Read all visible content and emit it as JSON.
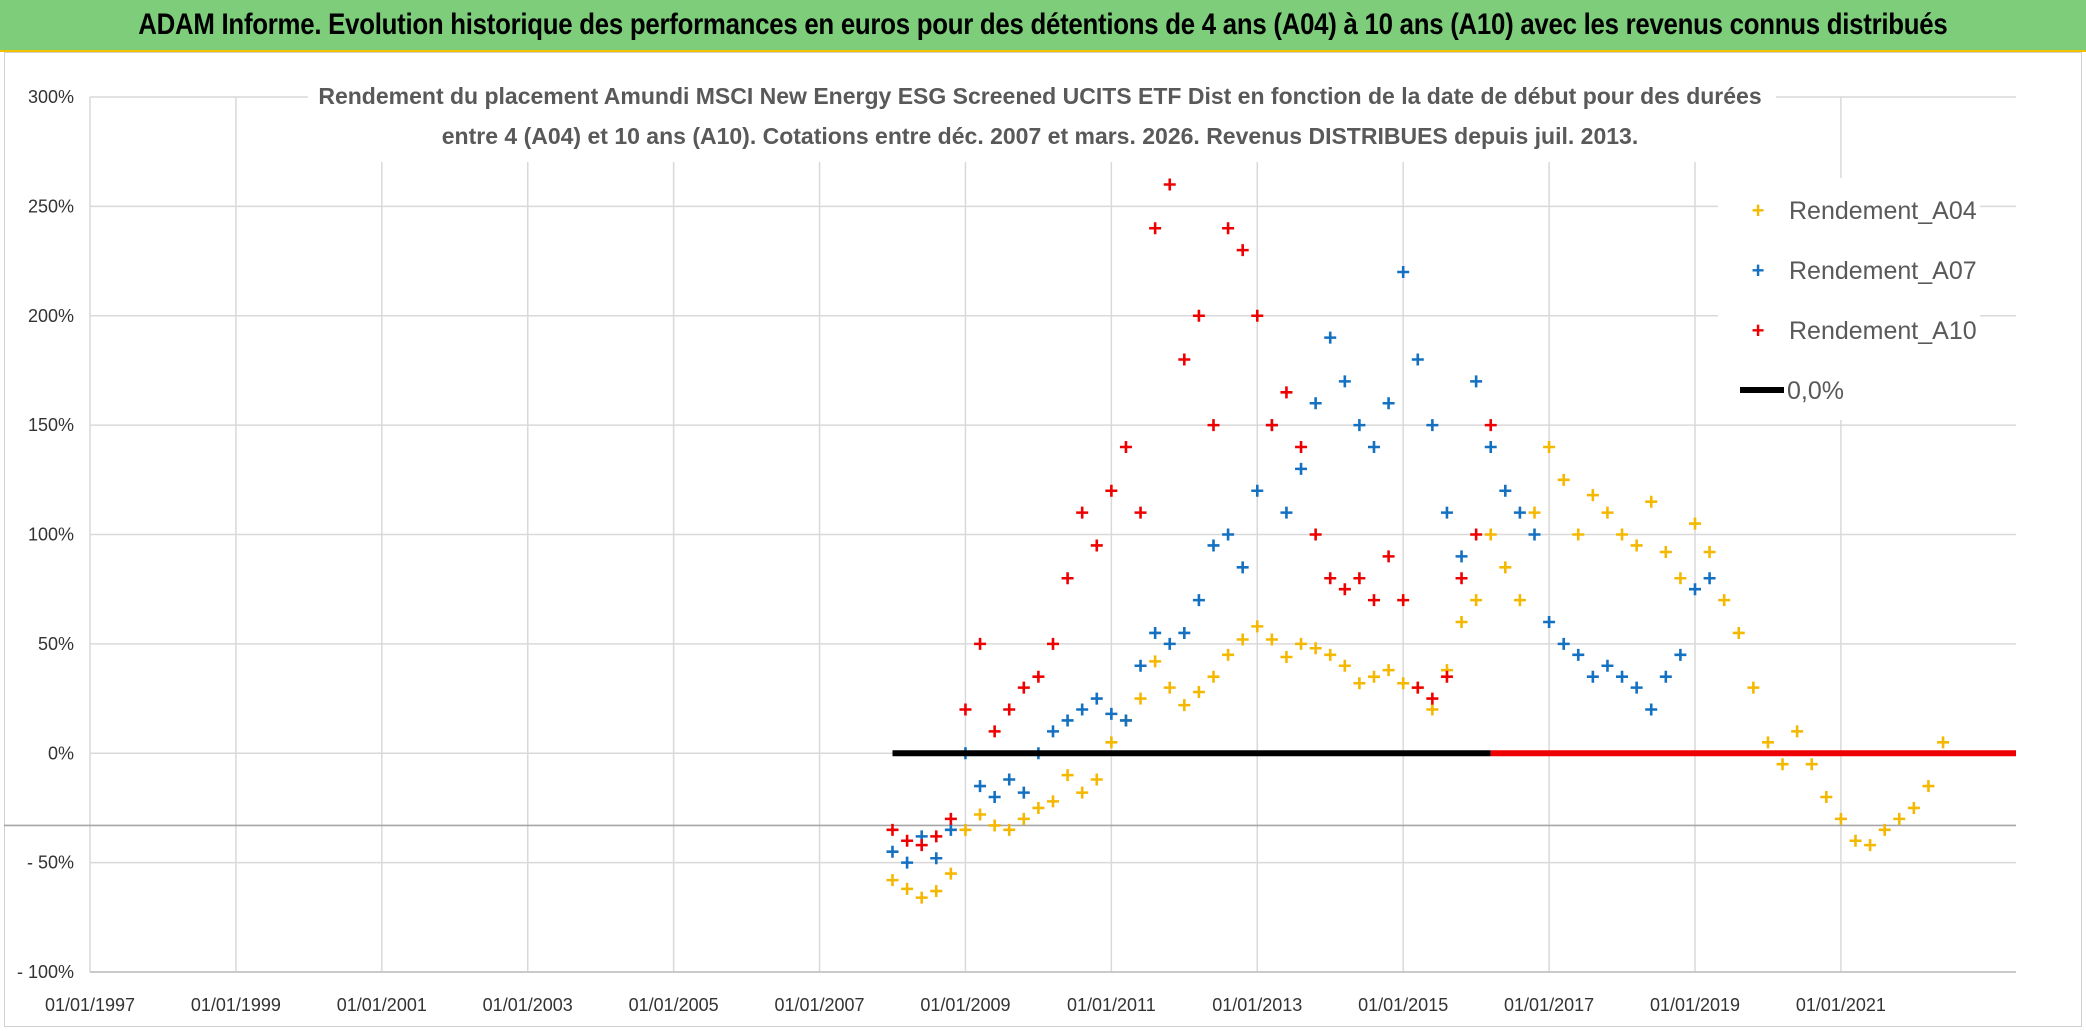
{
  "banner_title": "ADAM Informe. Evolution historique des performances en euros pour des détentions de 4 ans (A04) à 10 ans (A10) avec les revenus connus distribués",
  "colors": {
    "a04": "#f5b800",
    "a07": "#1470c0",
    "a10": "#ee0000",
    "zero": "#000000",
    "banner": "#7dcd7b"
  },
  "chart_data": {
    "type": "scatter",
    "title_line1": "Rendement du placement Amundi MSCI New Energy ESG Screened UCITS ETF Dist en fonction de la date de début pour des durées",
    "title_line2": "entre 4 (A04) et 10 ans (A10). Cotations entre déc. 2007 et mars. 2026. Revenus DISTRIBUES depuis juil. 2013.",
    "xlim": [
      1997.0,
      2023.4
    ],
    "ylim": [
      -100,
      300
    ],
    "x_ticks": [
      {
        "value": 1997,
        "label": "01/01/1997"
      },
      {
        "value": 1999,
        "label": "01/01/1999"
      },
      {
        "value": 2001,
        "label": "01/01/2001"
      },
      {
        "value": 2003,
        "label": "01/01/2003"
      },
      {
        "value": 2005,
        "label": "01/01/2005"
      },
      {
        "value": 2007,
        "label": "01/01/2007"
      },
      {
        "value": 2009,
        "label": "01/01/2009"
      },
      {
        "value": 2011,
        "label": "01/01/2011"
      },
      {
        "value": 2013,
        "label": "01/01/2013"
      },
      {
        "value": 2015,
        "label": "01/01/2015"
      },
      {
        "value": 2017,
        "label": "01/01/2017"
      },
      {
        "value": 2019,
        "label": "01/01/2019"
      },
      {
        "value": 2021,
        "label": "01/01/2021"
      }
    ],
    "y_ticks": [
      {
        "value": 300,
        "label": "300%"
      },
      {
        "value": 250,
        "label": "250%"
      },
      {
        "value": 200,
        "label": "200%"
      },
      {
        "value": 150,
        "label": "150%"
      },
      {
        "value": 100,
        "label": "100%"
      },
      {
        "value": 50,
        "label": "50%"
      },
      {
        "value": 0,
        "label": "0%"
      },
      {
        "value": -50,
        "label": "- 50%"
      },
      {
        "value": -100,
        "label": "- 100%"
      }
    ],
    "reference_line_y": -33,
    "legend": [
      "Rendement_A04",
      "Rendement_A07",
      "Rendement_A10",
      "0,0%"
    ],
    "series": [
      {
        "name": "Rendement_A04",
        "x": [
          2008.0,
          2008.2,
          2008.4,
          2008.6,
          2008.8,
          2009.0,
          2009.2,
          2009.4,
          2009.6,
          2009.8,
          2010.0,
          2010.2,
          2010.4,
          2010.6,
          2010.8,
          2011.0,
          2011.2,
          2011.4,
          2011.6,
          2011.8,
          2012.0,
          2012.2,
          2012.4,
          2012.6,
          2012.8,
          2013.0,
          2013.2,
          2013.4,
          2013.6,
          2013.8,
          2014.0,
          2014.2,
          2014.4,
          2014.6,
          2014.8,
          2015.0,
          2015.2,
          2015.4,
          2015.6,
          2015.8,
          2016.0,
          2016.2,
          2016.4,
          2016.6,
          2016.8,
          2017.0,
          2017.2,
          2017.4,
          2017.6,
          2017.8,
          2018.0,
          2018.2,
          2018.4,
          2018.6,
          2018.8,
          2019.0,
          2019.2,
          2019.4,
          2019.6,
          2019.8,
          2020.0,
          2020.2,
          2020.4,
          2020.6,
          2020.8,
          2021.0,
          2021.2,
          2021.4,
          2021.6,
          2021.8,
          2022.0,
          2022.2,
          2022.4
        ],
        "y": [
          -58,
          -62,
          -66,
          -63,
          -55,
          -35,
          -28,
          -33,
          -35,
          -30,
          -25,
          -22,
          -10,
          -18,
          -12,
          5,
          15,
          25,
          42,
          30,
          22,
          28,
          35,
          45,
          52,
          58,
          52,
          44,
          50,
          48,
          45,
          40,
          32,
          35,
          38,
          32,
          30,
          20,
          38,
          60,
          70,
          100,
          85,
          70,
          110,
          140,
          125,
          100,
          118,
          110,
          100,
          95,
          115,
          92,
          80,
          105,
          92,
          70,
          55,
          30,
          5,
          -5,
          10,
          -5,
          -20,
          -30,
          -40,
          -42,
          -35,
          -30,
          -25,
          -15,
          5
        ]
      },
      {
        "name": "Rendement_A07",
        "x": [
          2008.0,
          2008.2,
          2008.4,
          2008.6,
          2008.8,
          2009.0,
          2009.2,
          2009.4,
          2009.6,
          2009.8,
          2010.0,
          2010.2,
          2010.4,
          2010.6,
          2010.8,
          2011.0,
          2011.2,
          2011.4,
          2011.6,
          2011.8,
          2012.0,
          2012.2,
          2012.4,
          2012.6,
          2012.8,
          2013.0,
          2013.2,
          2013.4,
          2013.6,
          2013.8,
          2014.0,
          2014.2,
          2014.4,
          2014.6,
          2014.8,
          2015.0,
          2015.2,
          2015.4,
          2015.6,
          2015.8,
          2016.0,
          2016.2,
          2016.4,
          2016.6,
          2016.8,
          2017.0,
          2017.2,
          2017.4,
          2017.6,
          2017.8,
          2018.0,
          2018.2,
          2018.4,
          2018.6,
          2018.8,
          2019.0,
          2019.2
        ],
        "y": [
          -45,
          -50,
          -38,
          -48,
          -35,
          0,
          -15,
          -20,
          -12,
          -18,
          0,
          10,
          15,
          20,
          25,
          18,
          15,
          40,
          55,
          50,
          55,
          70,
          95,
          100,
          85,
          120,
          150,
          110,
          130,
          160,
          190,
          170,
          150,
          140,
          160,
          220,
          180,
          150,
          110,
          90,
          170,
          140,
          120,
          110,
          100,
          60,
          50,
          45,
          35,
          40,
          35,
          30,
          20,
          35,
          45,
          75,
          80
        ]
      },
      {
        "name": "Rendement_A10",
        "x": [
          2008.0,
          2008.2,
          2008.4,
          2008.6,
          2008.8,
          2009.0,
          2009.2,
          2009.4,
          2009.6,
          2009.8,
          2010.0,
          2010.2,
          2010.4,
          2010.6,
          2010.8,
          2011.0,
          2011.2,
          2011.4,
          2011.6,
          2011.8,
          2012.0,
          2012.2,
          2012.4,
          2012.6,
          2012.8,
          2013.0,
          2013.2,
          2013.4,
          2013.6,
          2013.8,
          2014.0,
          2014.2,
          2014.4,
          2014.6,
          2014.8,
          2015.0,
          2015.2,
          2015.4,
          2015.6,
          2015.8,
          2016.0,
          2016.2
        ],
        "y": [
          -35,
          -40,
          -42,
          -38,
          -30,
          20,
          50,
          10,
          20,
          30,
          35,
          50,
          80,
          110,
          95,
          120,
          140,
          110,
          240,
          260,
          180,
          200,
          150,
          240,
          230,
          200,
          150,
          165,
          140,
          100,
          80,
          75,
          80,
          70,
          90,
          70,
          30,
          25,
          35,
          80,
          100,
          150
        ]
      }
    ],
    "zero_segments": [
      {
        "x0": 2008.0,
        "x1": 2016.2,
        "color": "black"
      },
      {
        "x0": 2016.2,
        "x1": 2023.4,
        "color": "red"
      }
    ]
  }
}
